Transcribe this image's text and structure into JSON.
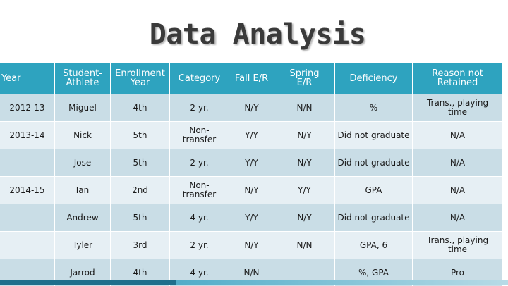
{
  "title": "Data Analysis",
  "table": {
    "headers": [
      "Year",
      "Student-\nAthlete",
      "Enrollment\nYear",
      "Category",
      "Fall E/R",
      "Spring\nE/R",
      "Deficiency",
      "Reason not\nRetained"
    ],
    "rows": [
      [
        "2012-13",
        "Miguel",
        "4th",
        "2 yr.",
        "N/Y",
        "N/N",
        "%",
        "Trans., playing\ntime"
      ],
      [
        "2013-14",
        "Nick",
        "5th",
        "Non-\ntransfer",
        "Y/Y",
        "N/Y",
        "Did not graduate",
        "N/A"
      ],
      [
        "",
        "Jose",
        "5th",
        "2 yr.",
        "Y/Y",
        "N/Y",
        "Did not graduate",
        "N/A"
      ],
      [
        "2014-15",
        "Ian",
        "2nd",
        "Non-\ntransfer",
        "N/Y",
        "Y/Y",
        "GPA",
        "N/A"
      ],
      [
        "",
        "Andrew",
        "5th",
        "4 yr.",
        "Y/Y",
        "N/Y",
        "Did not graduate",
        "N/A"
      ],
      [
        "",
        "Tyler",
        "3rd",
        "2 yr.",
        "N/Y",
        "N/N",
        "GPA, 6",
        "Trans., playing\ntime"
      ],
      [
        "",
        "Jarrod",
        "4th",
        "4 yr.",
        "N/N",
        "- - -",
        "%, GPA",
        "Pro"
      ]
    ]
  },
  "colors": {
    "header_bg": "#2ea3bf",
    "row_dark": "#c9dde6",
    "row_light": "#e6eff4"
  }
}
